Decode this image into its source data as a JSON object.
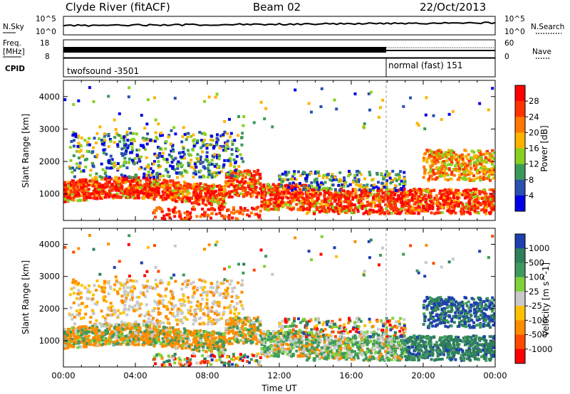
{
  "header": {
    "station": "Clyde River (fitACF)",
    "beam": "Beam 02",
    "date": "22/Oct/2013"
  },
  "noise_panel": {
    "left_label": "N.Sky",
    "right_label": "N.Search",
    "left_ticks": [
      "10^5",
      "10^0"
    ],
    "right_ticks": [
      "10^5",
      "10^0"
    ]
  },
  "freq_panel": {
    "left_label_1": "Freq.",
    "left_label_2": "[MHz]",
    "right_label": "Nave",
    "left_ticks": [
      "18",
      "8"
    ],
    "right_ticks": [
      "60",
      "0"
    ]
  },
  "cpid_panel": {
    "label": "CPID",
    "segments": [
      {
        "name": "twofsound",
        "cpid": "-3501",
        "text": "twofsound -3501",
        "start_hour": 0,
        "end_hour": 18
      },
      {
        "name": "normal (fast)",
        "cpid": "151",
        "text": "normal (fast) 151",
        "start_hour": 18,
        "end_hour": 24
      }
    ]
  },
  "chart_data": [
    {
      "type": "heatmap",
      "name": "power",
      "ylabel": "Slant Range [km]",
      "ylim": [
        180,
        4500
      ],
      "yticks": [
        "1000",
        "2000",
        "3000",
        "4000"
      ],
      "xlim": [
        0,
        24
      ],
      "colorbar_label": "Power [dB]",
      "colorbar_ticks": [
        "28",
        "24",
        "20",
        "16",
        "12",
        "8",
        "4"
      ],
      "colorbar_colors": [
        "#ff0000",
        "#ff3300",
        "#ff7700",
        "#ffb300",
        "#88d11e",
        "#3b9a5a",
        "#2a50b0",
        "#0000e6"
      ],
      "bands": [
        {
          "t0": 0,
          "t1": 9,
          "r_lo": 700,
          "r_hi": 1500,
          "level": "high"
        },
        {
          "t0": 9,
          "t1": 11,
          "r_lo": 1000,
          "r_hi": 1700,
          "level": "high"
        },
        {
          "t0": 11,
          "t1": 24,
          "r_lo": 400,
          "r_hi": 1100,
          "level": "high"
        },
        {
          "t0": 20,
          "t1": 24,
          "r_lo": 1400,
          "r_hi": 2300,
          "level": "mid"
        },
        {
          "t0": 0,
          "t1": 10,
          "r_lo": 1600,
          "r_hi": 2900,
          "level": "low"
        }
      ]
    },
    {
      "type": "heatmap",
      "name": "velocity",
      "ylabel": "Slant Range [km]",
      "ylim": [
        180,
        4500
      ],
      "yticks": [
        "1000",
        "2000",
        "3000",
        "4000"
      ],
      "xlim": [
        0,
        24
      ],
      "xticks": [
        "00:00",
        "04:00",
        "08:00",
        "12:00",
        "16:00",
        "20:00",
        "00:00"
      ],
      "xlabel": "Time UT",
      "colorbar_label": "Velocity [m s^-1]",
      "colorbar_ticks": [
        "1000",
        "500",
        "100",
        "25",
        "-25",
        "-100",
        "-500",
        "-1000"
      ],
      "colorbar_colors": [
        "#1f3fb0",
        "#2f7f5a",
        "#3f9a5e",
        "#7fd23a",
        "#c9c9c9",
        "#ffc100",
        "#ff8c00",
        "#ff4a00",
        "#ff0000"
      ]
    }
  ]
}
